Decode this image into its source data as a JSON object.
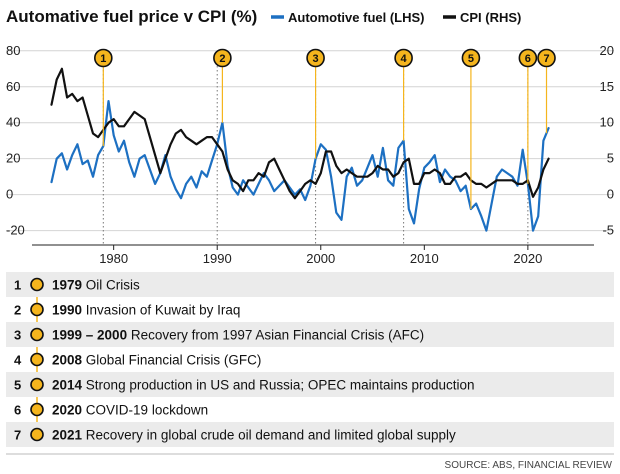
{
  "title": "Automative fuel price v CPI (%)",
  "legend": [
    {
      "label": "Automotive fuel (LHS)",
      "color": "#1d70c2"
    },
    {
      "label": "CPI (RHS)",
      "color": "#111111"
    }
  ],
  "source": "SOURCE: ABS, FINANCIAL REVIEW",
  "chart_data": {
    "type": "line",
    "title": "Automative fuel price v CPI (%)",
    "x_range": [
      1972.5,
      2026
    ],
    "x_ticks": [
      {
        "value": 1980,
        "label": "1980"
      },
      {
        "value": 1990,
        "label": "1990"
      },
      {
        "value": 2000,
        "label": "2000"
      },
      {
        "value": 2010,
        "label": "2010"
      },
      {
        "value": 2020,
        "label": "2020"
      }
    ],
    "y_left": {
      "range": [
        -28,
        86
      ],
      "ticks": [
        {
          "value": 80,
          "label": "80"
        },
        {
          "value": 60,
          "label": "60"
        },
        {
          "value": 40,
          "label": "40"
        },
        {
          "value": 20,
          "label": "20"
        },
        {
          "value": 0,
          "label": "0"
        },
        {
          "value": -20,
          "label": "-20"
        }
      ]
    },
    "y_right": {
      "range": [
        -7,
        21.5
      ],
      "ticks": [
        {
          "value": 20,
          "label": "20"
        },
        {
          "value": 15,
          "label": "15"
        },
        {
          "value": 10,
          "label": "10"
        },
        {
          "value": 5,
          "label": "5"
        },
        {
          "value": 0,
          "label": "0"
        },
        {
          "value": -5,
          "label": "-5"
        }
      ]
    },
    "grid": "horizontal",
    "series": [
      {
        "name": "Automotive fuel (LHS)",
        "axis": "left",
        "color": "#1d70c2",
        "x": [
          1974.0,
          1974.5,
          1975.0,
          1975.5,
          1976.0,
          1976.5,
          1977.0,
          1977.5,
          1978.0,
          1978.5,
          1979.0,
          1979.5,
          1980.0,
          1980.5,
          1981.0,
          1981.5,
          1982.0,
          1982.5,
          1983.0,
          1983.5,
          1984.0,
          1984.5,
          1985.0,
          1985.5,
          1986.0,
          1986.5,
          1987.0,
          1987.5,
          1988.0,
          1988.5,
          1989.0,
          1989.5,
          1990.0,
          1990.5,
          1991.0,
          1991.5,
          1992.0,
          1992.5,
          1993.0,
          1993.5,
          1994.0,
          1994.5,
          1995.0,
          1995.5,
          1996.0,
          1996.5,
          1997.0,
          1997.5,
          1998.0,
          1998.5,
          1999.0,
          1999.5,
          2000.0,
          2000.5,
          2001.0,
          2001.5,
          2002.0,
          2002.5,
          2003.0,
          2003.5,
          2004.0,
          2004.5,
          2005.0,
          2005.5,
          2006.0,
          2006.5,
          2007.0,
          2007.5,
          2008.0,
          2008.5,
          2009.0,
          2009.5,
          2010.0,
          2010.5,
          2011.0,
          2011.5,
          2012.0,
          2012.5,
          2013.0,
          2013.5,
          2014.0,
          2014.5,
          2015.0,
          2015.5,
          2016.0,
          2016.5,
          2017.0,
          2017.5,
          2018.0,
          2018.5,
          2019.0,
          2019.5,
          2020.0,
          2020.5,
          2021.0,
          2021.5,
          2022.0
        ],
        "y": [
          7,
          20,
          23,
          14,
          22,
          28,
          17,
          19,
          10,
          22,
          27,
          52,
          33,
          24,
          30,
          18,
          10,
          20,
          22,
          14,
          6,
          12,
          22,
          10,
          3,
          -2,
          6,
          10,
          4,
          13,
          10,
          19,
          28,
          40,
          16,
          4,
          0,
          8,
          4,
          0,
          6,
          12,
          8,
          2,
          5,
          8,
          4,
          0,
          3,
          -3,
          5,
          20,
          28,
          25,
          10,
          -10,
          -14,
          10,
          15,
          5,
          8,
          15,
          22,
          10,
          26,
          8,
          5,
          26,
          30,
          -8,
          -16,
          3,
          15,
          18,
          22,
          7,
          14,
          10,
          8,
          2,
          5,
          -8,
          -5,
          -12,
          -20,
          -5,
          10,
          14,
          12,
          10,
          5,
          25,
          6,
          -20,
          -12,
          30,
          37
        ]
      },
      {
        "name": "CPI (RHS)",
        "axis": "right",
        "color": "#111111",
        "x": [
          1974.0,
          1974.5,
          1975.0,
          1975.5,
          1976.0,
          1976.5,
          1977.0,
          1977.5,
          1978.0,
          1978.5,
          1979.0,
          1979.5,
          1980.0,
          1980.5,
          1981.0,
          1981.5,
          1982.0,
          1982.5,
          1983.0,
          1983.5,
          1984.0,
          1984.5,
          1985.0,
          1985.5,
          1986.0,
          1986.5,
          1987.0,
          1987.5,
          1988.0,
          1988.5,
          1989.0,
          1989.5,
          1990.0,
          1990.5,
          1991.0,
          1991.5,
          1992.0,
          1992.5,
          1993.0,
          1993.5,
          1994.0,
          1994.5,
          1995.0,
          1995.5,
          1996.0,
          1996.5,
          1997.0,
          1997.5,
          1998.0,
          1998.5,
          1999.0,
          1999.5,
          2000.0,
          2000.5,
          2001.0,
          2001.5,
          2002.0,
          2002.5,
          2003.0,
          2003.5,
          2004.0,
          2004.5,
          2005.0,
          2005.5,
          2006.0,
          2006.5,
          2007.0,
          2007.5,
          2008.0,
          2008.5,
          2009.0,
          2009.5,
          2010.0,
          2010.5,
          2011.0,
          2011.5,
          2012.0,
          2012.5,
          2013.0,
          2013.5,
          2014.0,
          2014.5,
          2015.0,
          2015.5,
          2016.0,
          2016.5,
          2017.0,
          2017.5,
          2018.0,
          2018.5,
          2019.0,
          2019.5,
          2020.0,
          2020.5,
          2021.0,
          2021.5,
          2022.0
        ],
        "y": [
          12.5,
          16.0,
          17.5,
          13.5,
          14.0,
          13.0,
          13.5,
          11.0,
          8.5,
          8.0,
          9.0,
          10.0,
          10.5,
          9.5,
          9.5,
          10.5,
          11.5,
          11.0,
          10.5,
          8.0,
          5.5,
          3.0,
          5.0,
          7.0,
          8.5,
          9.0,
          8.0,
          7.5,
          7.0,
          7.5,
          8.0,
          8.0,
          7.0,
          6.0,
          3.5,
          2.0,
          1.5,
          0.5,
          2.0,
          2.0,
          3.0,
          2.5,
          4.5,
          5.0,
          3.5,
          2.0,
          0.5,
          -0.5,
          0.5,
          1.5,
          2.0,
          1.5,
          3.0,
          6.0,
          6.0,
          4.0,
          3.0,
          3.5,
          3.0,
          2.5,
          2.5,
          2.5,
          3.0,
          4.0,
          3.5,
          3.5,
          2.5,
          3.0,
          4.5,
          5.0,
          1.5,
          1.5,
          3.0,
          3.0,
          3.5,
          3.0,
          1.5,
          1.5,
          2.5,
          2.5,
          3.0,
          2.0,
          1.5,
          1.5,
          1.0,
          1.5,
          2.0,
          2.0,
          2.0,
          2.0,
          1.5,
          1.5,
          2.0,
          -0.3,
          1.0,
          3.5,
          5.0
        ]
      }
    ],
    "markers": [
      {
        "label": "1",
        "year": 1979.0
      },
      {
        "label": "2",
        "year": 1990.5
      },
      {
        "label": "3",
        "year": 1999.5
      },
      {
        "label": "4",
        "year": 2008.0
      },
      {
        "label": "5",
        "year": 2014.5
      },
      {
        "label": "6",
        "year": 2020.0
      },
      {
        "label": "7",
        "year": 2021.8
      }
    ],
    "event_lines": [
      1979.0,
      1990.0,
      1999.5,
      2008.0,
      2020.0
    ]
  },
  "events": [
    {
      "num": "1",
      "year": "1979",
      "description": "Oil Crisis"
    },
    {
      "num": "2",
      "year": "1990",
      "description": "Invasion of Kuwait by Iraq"
    },
    {
      "num": "3",
      "year": "1999 – 2000",
      "description": "Recovery from 1997 Asian Financial Crisis (AFC)"
    },
    {
      "num": "4",
      "year": "2008",
      "description": "Global Financial Crisis (GFC)"
    },
    {
      "num": "5",
      "year": "2014",
      "description": "Strong production in US and Russia; OPEC maintains production"
    },
    {
      "num": "6",
      "year": "2020",
      "description": "COVID-19 lockdown"
    },
    {
      "num": "7",
      "year": "2021",
      "description": "Recovery in global crude oil demand and limited global supply"
    }
  ],
  "colors": {
    "accent": "#f5b51d",
    "fuel": "#1d70c2",
    "cpi": "#111111",
    "row_shade": "#ebebeb"
  }
}
